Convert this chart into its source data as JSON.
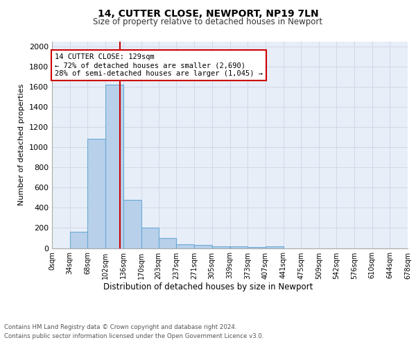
{
  "title1": "14, CUTTER CLOSE, NEWPORT, NP19 7LN",
  "title2": "Size of property relative to detached houses in Newport",
  "xlabel": "Distribution of detached houses by size in Newport",
  "ylabel": "Number of detached properties",
  "footnote1": "Contains HM Land Registry data © Crown copyright and database right 2024.",
  "footnote2": "Contains public sector information licensed under the Open Government Licence v3.0.",
  "annotation_line1": "14 CUTTER CLOSE: 129sqm",
  "annotation_line2": "← 72% of detached houses are smaller (2,690)",
  "annotation_line3": "28% of semi-detached houses are larger (1,045) →",
  "property_sqm": 129,
  "bin_edges": [
    0,
    34,
    68,
    102,
    136,
    170,
    203,
    237,
    271,
    305,
    339,
    373,
    407,
    441,
    475,
    509,
    542,
    576,
    610,
    644,
    678
  ],
  "bin_labels": [
    "0sqm",
    "34sqm",
    "68sqm",
    "102sqm",
    "136sqm",
    "170sqm",
    "203sqm",
    "237sqm",
    "271sqm",
    "305sqm",
    "339sqm",
    "373sqm",
    "407sqm",
    "441sqm",
    "475sqm",
    "509sqm",
    "542sqm",
    "576sqm",
    "610sqm",
    "644sqm",
    "678sqm"
  ],
  "counts": [
    0,
    160,
    1085,
    1620,
    480,
    200,
    100,
    40,
    28,
    20,
    15,
    10,
    20,
    0,
    0,
    0,
    0,
    0,
    0,
    0
  ],
  "bar_color": "#b8d0ea",
  "bar_edge_color": "#6aaad4",
  "grid_color": "#d0d8e8",
  "bg_color": "#e8eef8",
  "red_line_color": "#cc0000",
  "annotation_box_color": "#cc0000",
  "ylim": [
    0,
    2050
  ],
  "yticks": [
    0,
    200,
    400,
    600,
    800,
    1000,
    1200,
    1400,
    1600,
    1800,
    2000
  ]
}
